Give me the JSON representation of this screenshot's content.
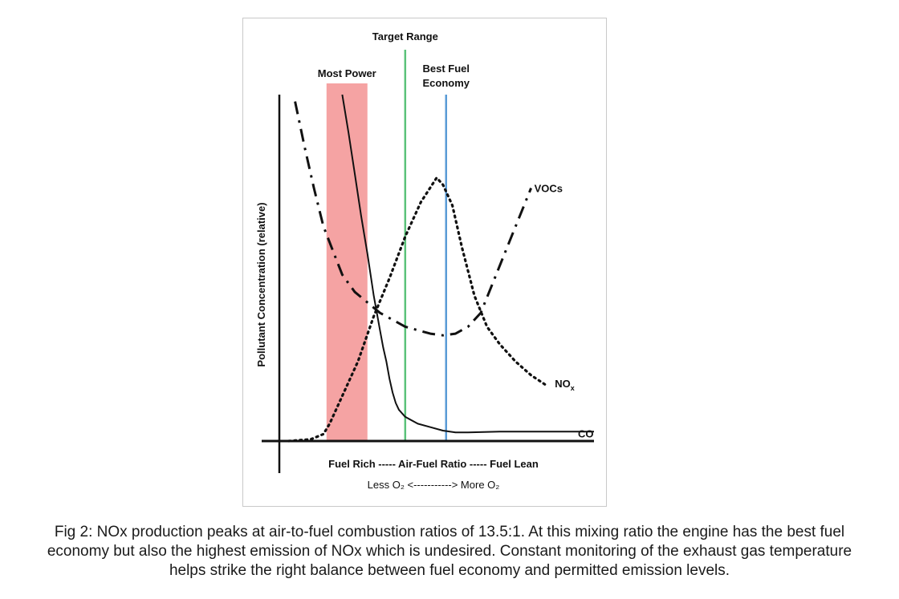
{
  "chart_data": {
    "type": "line",
    "title": "",
    "ylabel": "Pollutant Concentration (relative)",
    "xlabel": "Fuel Rich ----- Air-Fuel Ratio ----- Fuel Lean",
    "xlabel_sub": "Less O₂ <-----------> More O₂",
    "xlim": [
      0,
      100
    ],
    "ylim": [
      0,
      100
    ],
    "grid": false,
    "regions": [
      {
        "label": "Most Power",
        "x_start": 15,
        "x_end": 28,
        "color": "#f5a3a3"
      }
    ],
    "markers": [
      {
        "label": "Target Range",
        "x": 40,
        "color": "#5bc27a"
      },
      {
        "label": "Best Fuel Economy",
        "lines": [
          "Best Fuel",
          "Economy"
        ],
        "x": 53,
        "color": "#5a9bd6"
      }
    ],
    "series": [
      {
        "name": "CO",
        "style": "solid",
        "color": "#111111",
        "x": [
          20,
          22,
          24,
          26,
          28,
          30,
          32,
          33,
          34,
          35,
          36,
          37,
          38,
          40,
          44,
          48,
          52,
          56,
          60,
          70,
          80,
          90,
          100
        ],
        "y": [
          100,
          89,
          77,
          65,
          54,
          42,
          32,
          27,
          23,
          18,
          14,
          11,
          9,
          7,
          5,
          4,
          3,
          2.5,
          2.5,
          2.7,
          2.7,
          2.7,
          2.7
        ]
      },
      {
        "name": "NOₓ",
        "label_main": "NO",
        "label_sub": "x",
        "style": "dotted",
        "color": "#111111",
        "x": [
          3,
          10,
          14,
          16,
          20,
          25,
          30,
          35,
          40,
          45,
          50,
          52,
          55,
          58,
          62,
          66,
          70,
          75,
          80,
          85
        ],
        "y": [
          0,
          0.5,
          2,
          5,
          13,
          23,
          36,
          47,
          59,
          69,
          76,
          74,
          68,
          56,
          42,
          33,
          28,
          23,
          19,
          16
        ]
      },
      {
        "name": "VOCs",
        "style": "dashdot",
        "color": "#111111",
        "x": [
          5,
          8,
          11,
          14,
          17,
          20,
          24,
          28,
          32,
          36,
          40,
          44,
          48,
          52,
          56,
          60,
          64,
          68,
          72,
          76,
          80
        ],
        "y": [
          98,
          85,
          73,
          62,
          55,
          48,
          43,
          40,
          37,
          35,
          33,
          32,
          31,
          30.5,
          31,
          33,
          37,
          46,
          55,
          64,
          73
        ]
      }
    ]
  },
  "caption": {
    "lines": [
      "Fig 2: NOx production peaks at air-to-fuel combustion ratios of 13.5:1. At this mixing ratio the engine has the best fuel",
      "economy but also the highest emission of NOx which is undesired. Constant monitoring of the exhaust gas temperature",
      "helps strike the right balance between fuel economy and permitted emission levels."
    ]
  }
}
